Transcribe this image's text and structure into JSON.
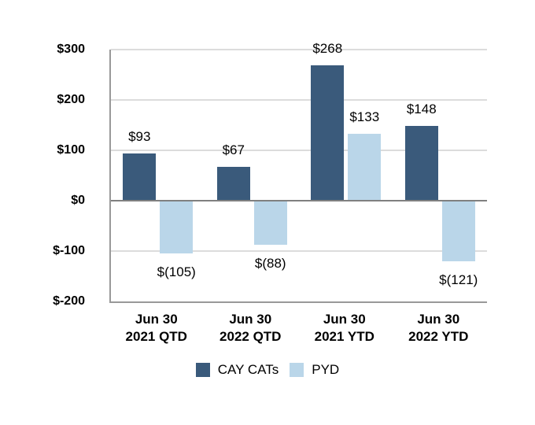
{
  "chart_data": {
    "type": "bar",
    "title": "",
    "categories": [
      [
        "Jun 30",
        "2021 QTD"
      ],
      [
        "Jun 30",
        "2022 QTD"
      ],
      [
        "Jun 30",
        "2021 YTD"
      ],
      [
        "Jun 30",
        "2022 YTD"
      ]
    ],
    "series": [
      {
        "name": "CAY CATs",
        "color": "#3A5A7B",
        "values": [
          93,
          67,
          268,
          148
        ],
        "data_labels": [
          "$93",
          "$67",
          "$268",
          "$148"
        ]
      },
      {
        "name": "PYD",
        "color": "#BAD6E9",
        "values": [
          -105,
          -88,
          133,
          -121
        ],
        "data_labels": [
          "$(105)",
          "$(88)",
          "$133",
          "$(121)"
        ]
      }
    ],
    "y_axis": {
      "min": -200,
      "max": 300,
      "ticks": [
        {
          "label": "$300",
          "value": 300
        },
        {
          "label": "$200",
          "value": 200
        },
        {
          "label": "$100",
          "value": 100
        },
        {
          "label": "$0",
          "value": 0
        },
        {
          "label": "$-100",
          "value": -100
        },
        {
          "label": "$-200",
          "value": -200
        }
      ]
    },
    "grid": true,
    "legend_position": "bottom",
    "legend": [
      "CAY CATs",
      "PYD"
    ]
  },
  "colors": {
    "axis_line": "#999999",
    "zero_line": "#808080",
    "gridline": "#DCDCDC",
    "text": "#000000",
    "background": "#FFFFFF"
  }
}
